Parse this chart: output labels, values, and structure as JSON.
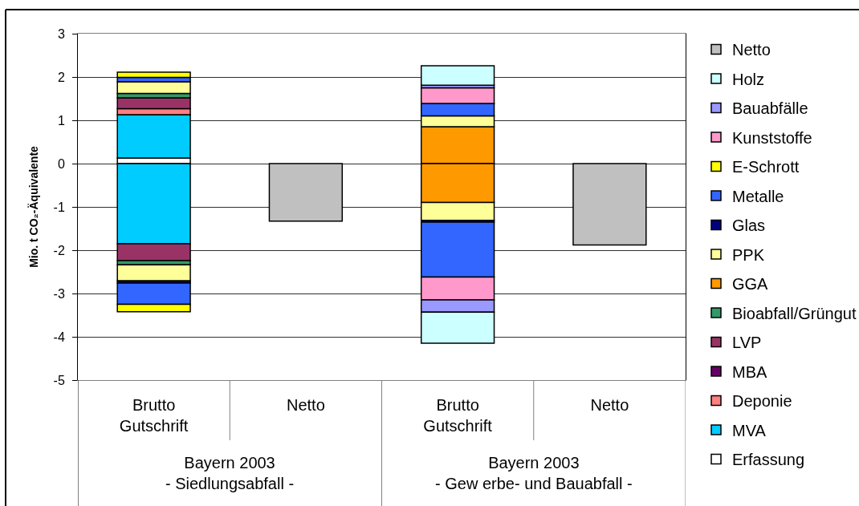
{
  "chart_data": {
    "type": "bar",
    "stacked": true,
    "ylabel": "Mio. t CO₂-Äquivalente",
    "categories": [
      "Brutto\nGutschrift",
      "Netto",
      "Brutto\nGutschrift",
      "Netto"
    ],
    "annotations": [
      "Bayern 2003\n- Siedlungsabfall -",
      "Bayern 2003\n- Gew erbe- und Bauabfall -"
    ],
    "ylim": [
      -5,
      3
    ],
    "yticks": [
      -5,
      -4,
      -3,
      -2,
      -1,
      0,
      1,
      2,
      3
    ],
    "grid": "y",
    "legend": "right",
    "series": [
      {
        "name": "Erfassung",
        "color": "#ffffff",
        "values": [
          0.13,
          null,
          null,
          null
        ]
      },
      {
        "name": "MVA",
        "color": "#00ccff",
        "values": [
          1.0,
          null,
          null,
          null
        ]
      },
      {
        "color": "#00ccff",
        "values": [
          -1.85,
          null,
          null,
          null
        ]
      },
      {
        "name": "Deponie",
        "color": "#ff8080",
        "values": [
          0.14,
          null,
          null,
          null
        ]
      },
      {
        "name": "MBA",
        "color": "#660066",
        "values": [
          null,
          null,
          null,
          null
        ]
      },
      {
        "name": "LVP",
        "color": "#993366",
        "values": [
          0.25,
          null,
          null,
          null
        ]
      },
      {
        "color": "#993366",
        "values": [
          -0.39,
          null,
          null,
          null
        ]
      },
      {
        "name": "Bioabfall/Grüngut",
        "color": "#339966",
        "values": [
          0.1,
          null,
          null,
          null
        ]
      },
      {
        "color": "#339966",
        "values": [
          -0.1,
          null,
          null,
          null
        ]
      },
      {
        "name": "GGA",
        "color": "#ff9900",
        "values": [
          null,
          null,
          0.85,
          null
        ]
      },
      {
        "color": "#ff9900",
        "values": [
          null,
          null,
          -0.9,
          null
        ]
      },
      {
        "name": "PPK",
        "color": "#ffff99",
        "values": [
          0.27,
          null,
          0.25,
          null
        ]
      },
      {
        "color": "#ffff99",
        "values": [
          -0.37,
          null,
          -0.41,
          null
        ]
      },
      {
        "name": "Glas",
        "color": "#000080",
        "values": [
          -0.05,
          null,
          -0.04,
          null
        ]
      },
      {
        "name": "Metalle",
        "color": "#3366ff",
        "values": [
          0.1,
          null,
          0.29,
          null
        ]
      },
      {
        "color": "#3366ff",
        "values": [
          -0.49,
          null,
          -1.27,
          null
        ]
      },
      {
        "name": "E-Schrott",
        "color": "#ffff00",
        "values": [
          0.12,
          null,
          null,
          null
        ]
      },
      {
        "color": "#ffff00",
        "values": [
          -0.17,
          null,
          null,
          null
        ]
      },
      {
        "name": "Kunststoffe",
        "color": "#ff99cc",
        "values": [
          null,
          null,
          0.36,
          null
        ]
      },
      {
        "color": "#ff99cc",
        "values": [
          null,
          null,
          -0.53,
          null
        ]
      },
      {
        "name": "Bauabfälle",
        "color": "#9999ff",
        "values": [
          null,
          null,
          0.06,
          null
        ]
      },
      {
        "color": "#9999ff",
        "values": [
          null,
          null,
          -0.28,
          null
        ]
      },
      {
        "name": "Holz",
        "color": "#ccffff",
        "values": [
          null,
          null,
          0.45,
          null
        ]
      },
      {
        "color": "#ccffff",
        "values": [
          null,
          null,
          -0.72,
          null
        ]
      },
      {
        "name": "Netto",
        "color": "#c0c0c0",
        "values": [
          null,
          -1.33,
          null,
          -1.88
        ]
      }
    ]
  }
}
